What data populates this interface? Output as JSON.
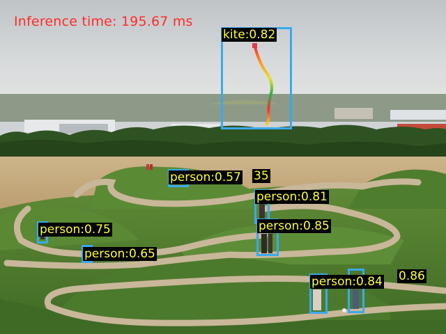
{
  "overlay": {
    "inference_text": "Inference time: 195.67 ms",
    "text_color": "#ff2b2b",
    "box_color": "#3aa9ee",
    "label_text_color": "#ffff3d",
    "label_bg_color": "#000000"
  },
  "detections": [
    {
      "label": "kite:0.82"
    },
    {
      "label": "person:0.57"
    },
    {
      "label": "35"
    },
    {
      "label": "person:0.81"
    },
    {
      "label": "person:0.85"
    },
    {
      "label": "person:0.75"
    },
    {
      "label": "person:0.65"
    },
    {
      "label": "person:0.84"
    },
    {
      "label": "0.86"
    }
  ]
}
